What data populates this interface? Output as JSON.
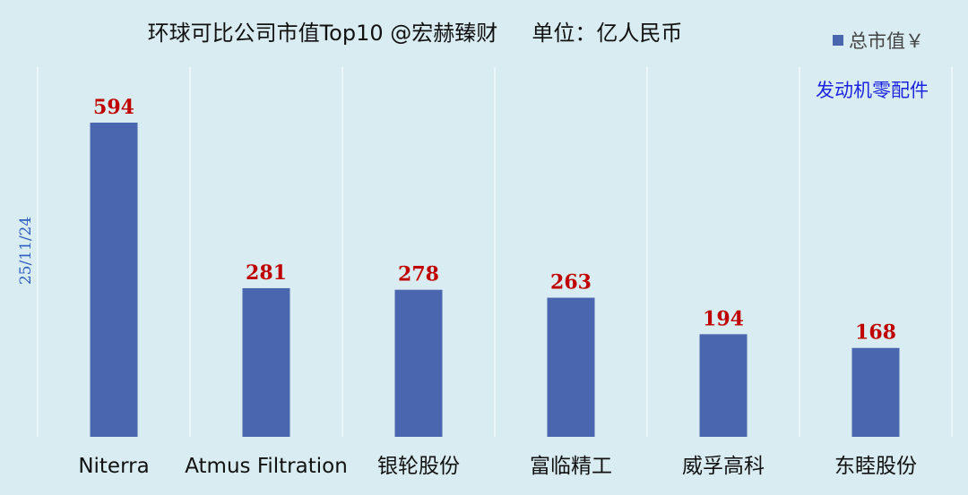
{
  "chart_data": {
    "type": "bar",
    "title": "环球可比公司市值Top10 @宏赫臻财     单位：亿人民币",
    "annotation": "发动机零配件",
    "date": "25/11/24",
    "legend": {
      "position": "top-right",
      "items": [
        "总市值￥"
      ]
    },
    "categories": [
      "Niterra",
      "Atmus Filtration",
      "银轮股份",
      "富临精工",
      "威孚高科",
      "东睦股份"
    ],
    "series": [
      {
        "name": "总市值￥",
        "values": [
          594,
          281,
          278,
          263,
          194,
          168
        ]
      }
    ],
    "ylim": [
      0,
      650
    ],
    "grid": true,
    "colors": {
      "bar": "#4a66ae",
      "value_label": "#c00000",
      "annotation": "#1c24e0",
      "background": "#d9ecf1"
    }
  }
}
